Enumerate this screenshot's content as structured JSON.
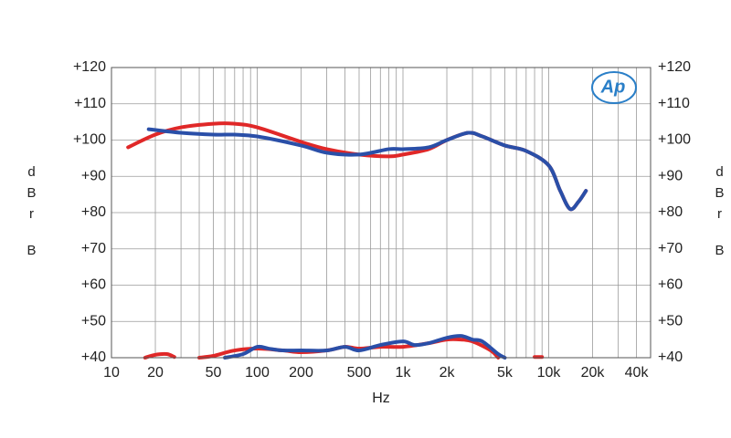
{
  "chart_data": {
    "type": "line",
    "x_label": "Hz",
    "y_label": [
      "dBr",
      "B"
    ],
    "logo": "Ap",
    "xscale": "log",
    "xlim": [
      10,
      50000
    ],
    "xticks": [
      10,
      20,
      50,
      100,
      200,
      500,
      {
        "value": 1000,
        "label": "1k"
      },
      {
        "value": 2000,
        "label": "2k"
      },
      {
        "value": 5000,
        "label": "5k"
      },
      {
        "value": 10000,
        "label": "10k"
      },
      {
        "value": 20000,
        "label": "20k"
      },
      {
        "value": 40000,
        "label": "40k"
      }
    ],
    "xgrid_minor": [
      30,
      40,
      60,
      70,
      80,
      90,
      300,
      400,
      600,
      700,
      800,
      900,
      3000,
      4000,
      6000,
      7000,
      8000,
      9000,
      30000,
      50000
    ],
    "ylim": [
      40,
      120
    ],
    "yticks": [
      {
        "value": 40,
        "label": "+40"
      },
      {
        "value": 50,
        "label": "+50"
      },
      {
        "value": 60,
        "label": "+60"
      },
      {
        "value": 70,
        "label": "+70"
      },
      {
        "value": 80,
        "label": "+80"
      },
      {
        "value": 90,
        "label": "+90"
      },
      {
        "value": 100,
        "label": "+100"
      },
      {
        "value": 110,
        "label": "+110"
      },
      {
        "value": 120,
        "label": "+120"
      }
    ],
    "grid": true,
    "series": [
      {
        "color": "#e02828",
        "x": [
          13,
          20,
          30,
          50,
          70,
          100,
          200,
          300,
          500,
          800,
          1000,
          1500,
          2000,
          2800,
          3500,
          5000,
          7000,
          10000,
          12000,
          14000,
          16000,
          18000
        ],
        "values": [
          98,
          101.5,
          103.5,
          104.5,
          104.5,
          103.5,
          99.5,
          97.5,
          96,
          95.5,
          96,
          97.5,
          100,
          102,
          101,
          98.5,
          97,
          93,
          86,
          81,
          83,
          86
        ]
      },
      {
        "color": "#2a4fa8",
        "x": [
          18,
          30,
          50,
          70,
          100,
          200,
          300,
          500,
          800,
          1000,
          1500,
          2000,
          2800,
          3500,
          5000,
          7000,
          10000,
          12000,
          14000,
          16000,
          18000
        ],
        "values": [
          103,
          102,
          101.5,
          101.5,
          101,
          98.5,
          96.5,
          96,
          97.5,
          97.5,
          98,
          100,
          102,
          101,
          98.5,
          97,
          93,
          86,
          81,
          83,
          86
        ]
      },
      {
        "color": "#e02828",
        "x": [
          17,
          20,
          24,
          27,
          33,
          40,
          50,
          70,
          100,
          150,
          200,
          300,
          400,
          500,
          700,
          1000,
          1500,
          2000,
          2500,
          3000,
          4000,
          4500,
          6500,
          8000,
          9000
        ],
        "values": [
          40,
          40.8,
          41,
          40.2,
          null,
          40,
          40.5,
          42,
          42.5,
          42,
          41.5,
          42,
          43,
          42.5,
          43,
          43,
          44,
          45,
          45,
          44.5,
          42,
          40,
          null,
          40.2,
          40.2
        ]
      },
      {
        "color": "#2a4fa8",
        "x": [
          60,
          80,
          100,
          120,
          150,
          200,
          300,
          400,
          500,
          700,
          1000,
          1200,
          1500,
          2000,
          2500,
          3000,
          3500,
          4500,
          5000
        ],
        "values": [
          40,
          41,
          43,
          42.5,
          42,
          42,
          42,
          43,
          42,
          43.5,
          44.5,
          43.5,
          44,
          45.5,
          46,
          45,
          44.5,
          41,
          40
        ]
      }
    ]
  }
}
